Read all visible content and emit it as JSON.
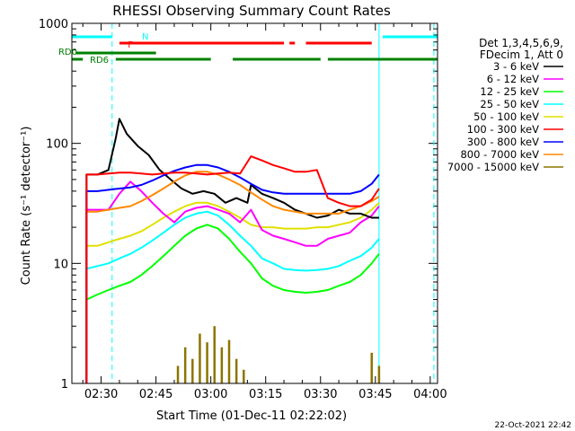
{
  "chart_data": {
    "type": "line",
    "title": "RHESSI Observing Summary Count Rates",
    "xlabel": "Start Time (01-Dec-11 02:22:02)",
    "ylabel": "Count Rate (s⁻¹ detector⁻¹)",
    "y_scale": "log",
    "ylim": [
      1,
      1000
    ],
    "xlim_minutes": [
      142,
      242
    ],
    "x_ticks": [
      {
        "label": "02:30",
        "minutes": 150
      },
      {
        "label": "02:45",
        "minutes": 165
      },
      {
        "label": "03:00",
        "minutes": 180
      },
      {
        "label": "03:15",
        "minutes": 195
      },
      {
        "label": "03:30",
        "minutes": 210
      },
      {
        "label": "03:45",
        "minutes": 225
      },
      {
        "label": "04:00",
        "minutes": 240
      }
    ],
    "y_ticks": [
      {
        "label": "1",
        "value": 1
      },
      {
        "label": "10",
        "value": 10
      },
      {
        "label": "100",
        "value": 100
      },
      {
        "label": "1000",
        "value": 1000
      }
    ],
    "legend": {
      "placement": "right",
      "header": [
        "Det 1,3,4,5,6,9,",
        "FDecim 1, Att 0"
      ]
    },
    "series": [
      {
        "name": "3 - 6 keV",
        "color": "#000000",
        "x": [
          146,
          149,
          152,
          154,
          155,
          157,
          160,
          163,
          166,
          169,
          172,
          175,
          178,
          181,
          184,
          187,
          190,
          191,
          194,
          197,
          200,
          203,
          206,
          209,
          212,
          215,
          218,
          221,
          224,
          226
        ],
        "y": [
          55,
          55,
          60,
          110,
          160,
          120,
          95,
          80,
          60,
          50,
          42,
          38,
          40,
          38,
          32,
          35,
          32,
          45,
          38,
          35,
          32,
          28,
          26,
          24,
          25,
          28,
          26,
          26,
          24,
          24
        ]
      },
      {
        "name": "6 - 12 keV",
        "color": "#ff00ff",
        "x": [
          146,
          149,
          152,
          155,
          158,
          161,
          164,
          167,
          170,
          173,
          176,
          179,
          182,
          185,
          188,
          191,
          194,
          197,
          200,
          203,
          206,
          209,
          212,
          215,
          218,
          221,
          224,
          226
        ],
        "y": [
          28,
          28,
          28,
          38,
          48,
          40,
          32,
          26,
          22,
          27,
          29,
          30,
          28,
          26,
          22,
          28,
          19,
          17,
          16,
          15,
          14,
          14,
          16,
          17,
          18,
          22,
          25,
          30
        ]
      },
      {
        "name": "12 - 25 keV",
        "color": "#00ff00",
        "x": [
          146,
          149,
          152,
          155,
          158,
          161,
          164,
          167,
          170,
          173,
          176,
          179,
          182,
          185,
          188,
          191,
          194,
          197,
          200,
          203,
          206,
          209,
          212,
          215,
          218,
          221,
          224,
          226
        ],
        "y": [
          5,
          5.5,
          6,
          6.5,
          7,
          8,
          9.5,
          11.5,
          14,
          17,
          19.5,
          21,
          19.5,
          16,
          12.5,
          10,
          7.5,
          6.5,
          6,
          5.8,
          5.7,
          5.8,
          6,
          6.5,
          7,
          8,
          10,
          12
        ]
      },
      {
        "name": "25 - 50 keV",
        "color": "#00ffff",
        "x": [
          146,
          149,
          152,
          155,
          158,
          161,
          164,
          167,
          170,
          173,
          176,
          179,
          182,
          185,
          188,
          191,
          194,
          197,
          200,
          203,
          206,
          209,
          212,
          215,
          218,
          221,
          224,
          226
        ],
        "y": [
          9,
          9.5,
          10,
          11,
          12,
          13.5,
          15.5,
          18,
          21,
          24,
          26,
          27,
          25,
          21,
          17,
          14,
          11,
          10,
          9,
          8.8,
          8.7,
          8.8,
          9,
          9.5,
          10.5,
          11.5,
          13.5,
          16
        ]
      },
      {
        "name": "50 - 100 keV",
        "color": "#e0e000",
        "x": [
          146,
          149,
          152,
          155,
          158,
          161,
          164,
          167,
          170,
          173,
          176,
          179,
          182,
          185,
          188,
          191,
          194,
          197,
          200,
          203,
          206,
          209,
          212,
          215,
          218,
          221,
          224,
          226
        ],
        "y": [
          14,
          14,
          15,
          16,
          17,
          18.5,
          21,
          24,
          27,
          30,
          32,
          32,
          30,
          27,
          24,
          21,
          20,
          20,
          19.5,
          19.5,
          19.5,
          20,
          20,
          21,
          22,
          24,
          28,
          32
        ]
      },
      {
        "name": "100 - 300 keV",
        "color": "#ff0000",
        "x": [
          146,
          149,
          152,
          155,
          158,
          161,
          164,
          167,
          170,
          173,
          176,
          179,
          182,
          185,
          188,
          191,
          194,
          197,
          200,
          203,
          206,
          209,
          212,
          215,
          218,
          221,
          224,
          226
        ],
        "y": [
          55,
          55,
          56,
          57,
          57,
          56,
          55,
          56,
          57,
          57,
          56,
          55,
          56,
          57,
          56,
          78,
          72,
          66,
          62,
          58,
          58,
          60,
          35,
          32,
          30,
          30,
          34,
          42
        ]
      },
      {
        "name": "300 - 800 keV",
        "color": "#0000ff",
        "x": [
          146,
          149,
          152,
          155,
          158,
          161,
          164,
          167,
          170,
          173,
          176,
          179,
          182,
          185,
          188,
          191,
          194,
          197,
          200,
          203,
          206,
          209,
          212,
          215,
          218,
          221,
          224,
          226
        ],
        "y": [
          40,
          40,
          41,
          42,
          43,
          45,
          49,
          54,
          59,
          63,
          66,
          66,
          63,
          58,
          52,
          46,
          41,
          39,
          38,
          38,
          38,
          38,
          38,
          38,
          38,
          40,
          46,
          55
        ]
      },
      {
        "name": "800 - 7000 keV",
        "color": "#ff8800",
        "x": [
          146,
          149,
          152,
          155,
          158,
          161,
          164,
          167,
          170,
          173,
          176,
          179,
          182,
          185,
          188,
          191,
          194,
          197,
          200,
          203,
          206,
          209,
          212,
          215,
          218,
          221,
          224,
          226
        ],
        "y": [
          27,
          27,
          28,
          29,
          30,
          33,
          37,
          42,
          48,
          54,
          58,
          58,
          55,
          50,
          45,
          39,
          34,
          30,
          28,
          27,
          26,
          26,
          26,
          26,
          28,
          30,
          33,
          36
        ]
      },
      {
        "name": "7000 - 15000 keV",
        "color": "#8b7500",
        "x": [
          171,
          173,
          175,
          177,
          179,
          181,
          183,
          185,
          187,
          189,
          224,
          226
        ],
        "y": [
          1.4,
          2.0,
          1.6,
          2.6,
          2.2,
          3.0,
          2.0,
          2.3,
          1.6,
          1.3,
          1.8,
          1.4
        ]
      }
    ],
    "flag_bars": [
      {
        "name": "N",
        "color": "#00ffff",
        "segments": [
          [
            142,
            153
          ],
          [
            227,
            242
          ]
        ]
      },
      {
        "name": "F",
        "color": "#ff0000",
        "segments": [
          [
            155,
            200
          ],
          [
            201.5,
            203
          ],
          [
            206,
            224
          ]
        ]
      },
      {
        "name": "RD0",
        "color": "#008000",
        "segments": [
          [
            143,
            165
          ]
        ]
      },
      {
        "name": "RD6",
        "color": "#008000",
        "segments": [
          [
            142,
            145
          ],
          [
            154,
            180
          ],
          [
            186,
            210
          ],
          [
            212,
            242
          ]
        ]
      }
    ],
    "vertical_markers": [
      {
        "minutes": 153,
        "color": "#00ffff",
        "style": "dashed"
      },
      {
        "minutes": 226,
        "color": "#00ffff",
        "style": "solid"
      },
      {
        "minutes": 241,
        "color": "#00ffff",
        "style": "dashed"
      }
    ]
  },
  "footer": {
    "timestamp": "22-Oct-2021 22:42"
  }
}
